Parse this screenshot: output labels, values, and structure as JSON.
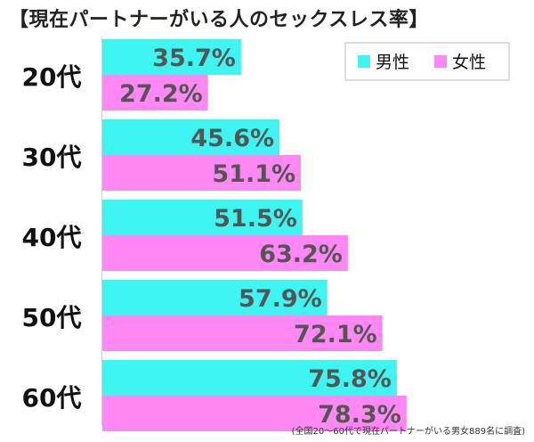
{
  "chart_data": {
    "type": "bar",
    "orientation": "horizontal",
    "title": "【現在パートナーがいる人のセックスレス率】",
    "categories": [
      "20代",
      "30代",
      "40代",
      "50代",
      "60代"
    ],
    "series": [
      {
        "name": "男性",
        "values": [
          35.7,
          45.6,
          51.5,
          57.9,
          75.8
        ],
        "color": "#3ff5f2"
      },
      {
        "name": "女性",
        "values": [
          27.2,
          51.1,
          63.2,
          72.1,
          78.3
        ],
        "color": "#ff88f5"
      }
    ],
    "value_suffix": "%",
    "xlim": [
      0,
      100
    ],
    "grid": false,
    "legend_position": "top-right"
  },
  "footnote": "(全国20～60代で現在パートナーがいる男女889名に調査)"
}
